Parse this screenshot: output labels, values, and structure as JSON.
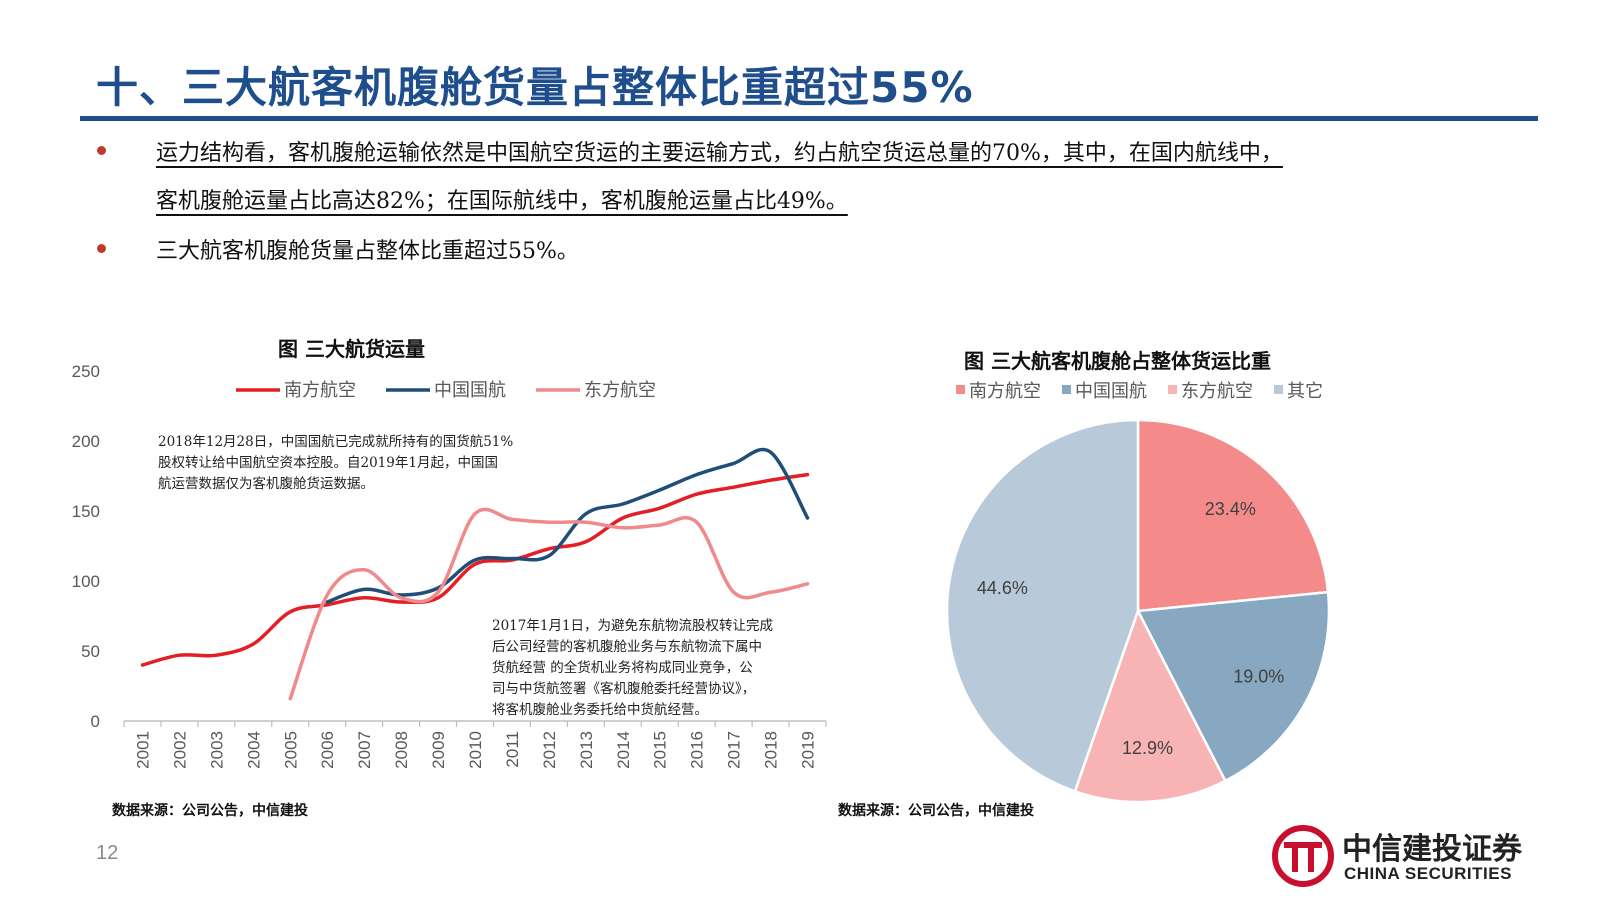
{
  "title": "十、三大航客机腹舱货量占整体比重超过55%",
  "bullets": [
    {
      "line1": "运力结构看，客机腹舱运输依然是中国航空货运的主要运输方式，约占航空货运总量的70%，其中，在国内航线中，",
      "line2": "客机腹舱运量占比高达82%；在国际航线中，客机腹舱运量占比49%。"
    },
    {
      "line1": "三大航客机腹舱货量占整体比重超过55%。"
    }
  ],
  "colors": {
    "brand": "#1f4e8c",
    "bullet": "#c0392b",
    "southern": "#e31e24",
    "airchina": "#1f4e79",
    "eastern": "#f08a8a"
  },
  "line_chart": {
    "title": "图  三大航货运量",
    "source": "数据来源：公司公告，中信建投",
    "note1": [
      "2018年12月28日，中国国航已完成就所持有的国货航51%",
      "股权转让给中国航空资本控股。自2019年1月起，中国国",
      "航运营数据仅为客机腹舱货运数据。"
    ],
    "note2": [
      "2017年1月1日，为避免东航物流股权转让完成",
      "后公司经营的客机腹舱业务与东航物流下属中",
      "货航经营 的全货机业务将构成同业竞争，公",
      "司与中货航签署《客机腹舱委托经营协议》，",
      "将客机腹舱业务委托给中货航经营。"
    ]
  },
  "pie_chart": {
    "title": "图  三大航客机腹舱占整体货运比重",
    "source": "数据来源：公司公告，中信建投"
  },
  "chart_data": [
    {
      "type": "line",
      "title": "图  三大航货运量",
      "categories": [
        "2001",
        "2002",
        "2003",
        "2004",
        "2005",
        "2006",
        "2007",
        "2008",
        "2009",
        "2010",
        "2011",
        "2012",
        "2013",
        "2014",
        "2015",
        "2016",
        "2017",
        "2018",
        "2019"
      ],
      "ylim": [
        0,
        250
      ],
      "yticks": [
        0,
        50,
        100,
        150,
        200,
        250
      ],
      "series": [
        {
          "name": "南方航空",
          "color": "#e31e24",
          "values": [
            40,
            47,
            47,
            55,
            78,
            83,
            88,
            85,
            88,
            112,
            115,
            123,
            128,
            145,
            152,
            162,
            167,
            172,
            176
          ]
        },
        {
          "name": "中国国航",
          "color": "#1f4e79",
          "values": [
            null,
            null,
            null,
            null,
            null,
            85,
            94,
            90,
            95,
            115,
            116,
            118,
            148,
            155,
            165,
            176,
            184,
            192,
            145
          ]
        },
        {
          "name": "东方航空",
          "color": "#f08a8a",
          "values": [
            null,
            null,
            null,
            null,
            16,
            90,
            108,
            88,
            92,
            148,
            144,
            142,
            142,
            138,
            140,
            142,
            92,
            92,
            98
          ]
        }
      ],
      "legend": "top"
    },
    {
      "type": "pie",
      "title": "图  三大航客机腹舱占整体货运比重",
      "slices": [
        {
          "name": "南方航空",
          "value": 23.4,
          "label": "23.4%",
          "color": "#f58a8a"
        },
        {
          "name": "中国国航",
          "value": 19.0,
          "label": "19.0%",
          "color": "#87a8c0"
        },
        {
          "name": "东方航空",
          "value": 12.9,
          "label": "12.9%",
          "color": "#f8b4b4"
        },
        {
          "name": "其它",
          "value": 44.6,
          "label": "44.6%",
          "color": "#b8cad9"
        }
      ],
      "legend": "top"
    }
  ],
  "footer": {
    "page": "12",
    "logo_cn": "中信建投证券",
    "logo_en": "CHINA SECURITIES"
  }
}
